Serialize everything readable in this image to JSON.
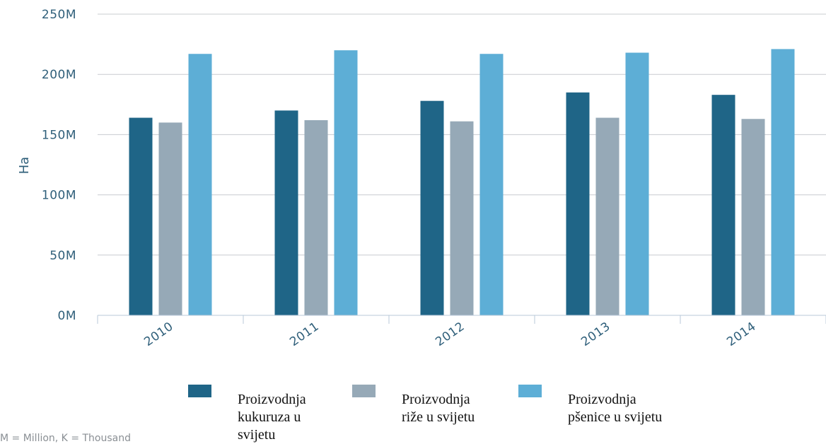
{
  "chart_data": {
    "type": "bar",
    "categories": [
      "2010",
      "2011",
      "2012",
      "2013",
      "2014"
    ],
    "series": [
      {
        "name": "Proizvodnja kukuruza u svijetu",
        "color": "#1f6587",
        "values": [
          164,
          170,
          178,
          185,
          183
        ]
      },
      {
        "name": "Proizvodnja riže u svijetu",
        "color": "#96a9b7",
        "values": [
          160,
          162,
          161,
          164,
          163
        ]
      },
      {
        "name": "Proizvodnja pšenice u svijetu",
        "color": "#5daed6",
        "values": [
          217,
          220,
          217,
          218,
          221
        ]
      }
    ],
    "y_tick_labels": [
      "0M",
      "50M",
      "100M",
      "150M",
      "200M",
      "250M"
    ],
    "y_ticks": [
      0,
      50,
      100,
      150,
      200,
      250
    ],
    "ylim": [
      0,
      250
    ],
    "ylabel": "Ha",
    "xlabel": "",
    "title": "",
    "grid": true,
    "legend_position": "bottom",
    "footnote": "M = Million, K = Thousand"
  },
  "legend": {
    "items": [
      {
        "lines": [
          "Proizvodnja",
          "kukuruza u",
          "svijetu"
        ],
        "color": "#1f6587"
      },
      {
        "lines": [
          "Proizvodnja",
          "riže u svijetu"
        ],
        "color": "#96a9b7"
      },
      {
        "lines": [
          "Proizvodnja",
          "pšenice u svijetu"
        ],
        "color": "#5daed6"
      }
    ]
  }
}
